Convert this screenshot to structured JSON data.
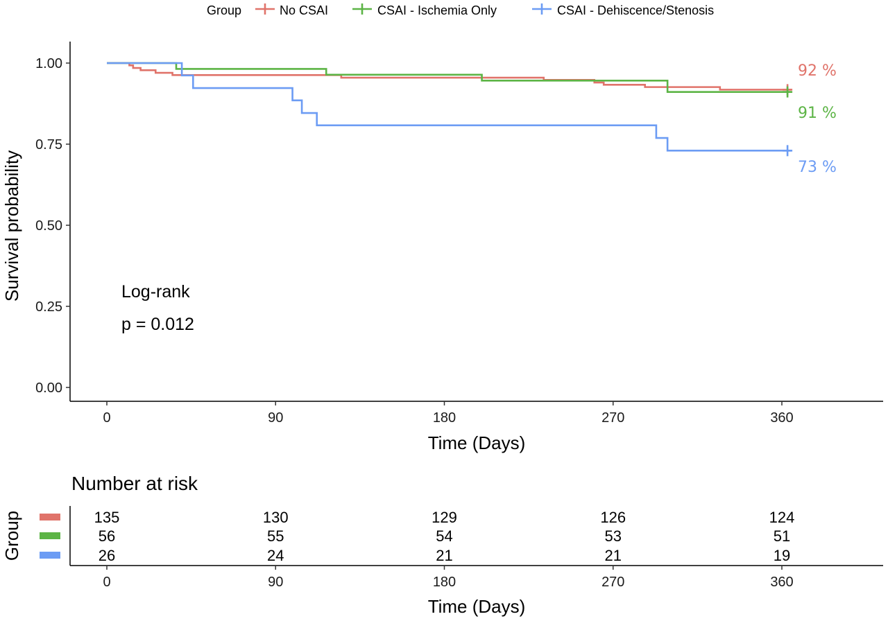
{
  "chart_data": [
    {
      "type": "line",
      "subtype": "kaplan-meier",
      "legend": {
        "title": "Group",
        "position": "top",
        "entries": [
          "No CSAI",
          "CSAI - Ischemia Only",
          "CSAI - Dehiscence/Stenosis"
        ]
      },
      "xlabel": "Time (Days)",
      "ylabel": "Survival probability",
      "xlim": [
        -20,
        410
      ],
      "ylim": [
        -0.05,
        1.05
      ],
      "xticks": [
        0,
        90,
        180,
        270,
        360
      ],
      "yticks": [
        0,
        0.25,
        0.5,
        0.75,
        1.0
      ],
      "ytick_labels": [
        "0.00",
        "0.25",
        "0.50",
        "0.75",
        "1.00"
      ],
      "grid": false,
      "annotation": {
        "line1": "Log-rank",
        "line2": "p = 0.012"
      },
      "series": [
        {
          "name": "No CSAI",
          "color": "#E0736A",
          "end_label": "92 %",
          "steps": [
            [
              0,
              1.0
            ],
            [
              12,
              0.993
            ],
            [
              14,
              0.985
            ],
            [
              18,
              0.978
            ],
            [
              26,
              0.97
            ],
            [
              35,
              0.963
            ],
            [
              125,
              0.955
            ],
            [
              233,
              0.948
            ],
            [
              260,
              0.94
            ],
            [
              265,
              0.933
            ],
            [
              287,
              0.926
            ],
            [
              327,
              0.918
            ],
            [
              365,
              0.918
            ]
          ],
          "censor_x": [
            363
          ]
        },
        {
          "name": "CSAI - Ischemia Only",
          "color": "#5CB445",
          "end_label": "91 %",
          "steps": [
            [
              0,
              1.0
            ],
            [
              37,
              0.982
            ],
            [
              117,
              0.964
            ],
            [
              200,
              0.946
            ],
            [
              299,
              0.911
            ],
            [
              365,
              0.911
            ]
          ],
          "censor_x": [
            363
          ]
        },
        {
          "name": "CSAI - Dehiscence/Stenosis",
          "color": "#6C9CF4",
          "end_label": "73 %",
          "steps": [
            [
              0,
              1.0
            ],
            [
              40,
              0.962
            ],
            [
              46,
              0.923
            ],
            [
              99,
              0.885
            ],
            [
              104,
              0.846
            ],
            [
              112,
              0.808
            ],
            [
              293,
              0.769
            ],
            [
              299,
              0.73
            ],
            [
              365,
              0.73
            ]
          ],
          "censor_x": [
            363
          ]
        }
      ]
    },
    {
      "type": "table",
      "title": "Number at risk",
      "ylabel": "Group",
      "xlabel": "Time (Days)",
      "xticks": [
        0,
        90,
        180,
        270,
        360
      ],
      "rows": [
        {
          "color": "#E0736A",
          "values": [
            135,
            130,
            129,
            126,
            124
          ]
        },
        {
          "color": "#5CB445",
          "values": [
            56,
            55,
            54,
            53,
            51
          ]
        },
        {
          "color": "#6C9CF4",
          "values": [
            26,
            24,
            21,
            21,
            19
          ]
        }
      ]
    }
  ]
}
